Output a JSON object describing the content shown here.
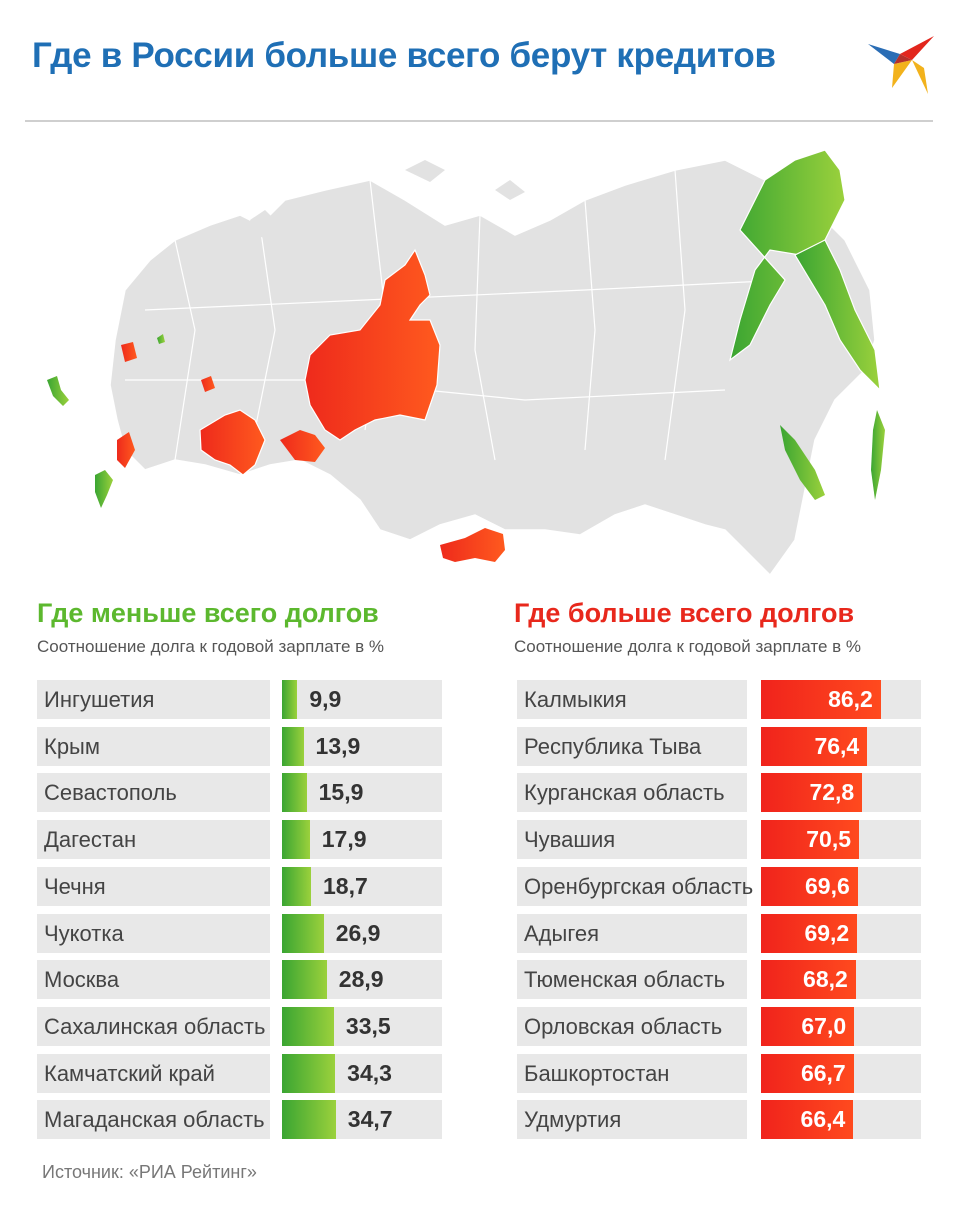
{
  "header": {
    "title": "Где в России больше всего берут кредитов",
    "logo_icon": "bird-logo-icon"
  },
  "map": {
    "description_icon": "russia-regions-map",
    "colors": {
      "base": "#e2e2e2",
      "low_debt": "#5cb82e",
      "high_debt": "#f0331e"
    }
  },
  "chart_data": [
    {
      "type": "bar",
      "title": "Где меньше всего долгов",
      "subtitle": "Соотношение долга к годовой зарплате в %",
      "color": "#5cb82e",
      "categories": [
        "Ингушетия",
        "Крым",
        "Севастополь",
        "Дагестан",
        "Чечня",
        "Чукотка",
        "Москва",
        "Сахалинская область",
        "Камчатский край",
        "Магаданская область"
      ],
      "values": [
        9.9,
        13.9,
        15.9,
        17.9,
        18.7,
        26.9,
        28.9,
        33.5,
        34.3,
        34.7
      ],
      "value_labels": [
        "9,9",
        "13,9",
        "15,9",
        "17,9",
        "18,7",
        "26,9",
        "28,9",
        "33,5",
        "34,3",
        "34,7"
      ]
    },
    {
      "type": "bar",
      "title": "Где больше всего долгов",
      "subtitle": "Соотношение долга к годовой зарплате в %",
      "color": "#f0331e",
      "categories": [
        "Калмыкия",
        "Республика Тыва",
        "Курганская область",
        "Чувашия",
        "Оренбургская область",
        "Адыгея",
        "Тюменская область",
        "Орловская область",
        "Башкортостан",
        "Удмуртия"
      ],
      "values": [
        86.2,
        76.4,
        72.8,
        70.5,
        69.6,
        69.2,
        68.2,
        67.0,
        66.7,
        66.4
      ],
      "value_labels": [
        "86,2",
        "76,4",
        "72,8",
        "70,5",
        "69,6",
        "69,2",
        "68,2",
        "67,0",
        "66,7",
        "66,4"
      ]
    }
  ],
  "footer": {
    "source": "Источник: «РИА Рейтинг»"
  }
}
